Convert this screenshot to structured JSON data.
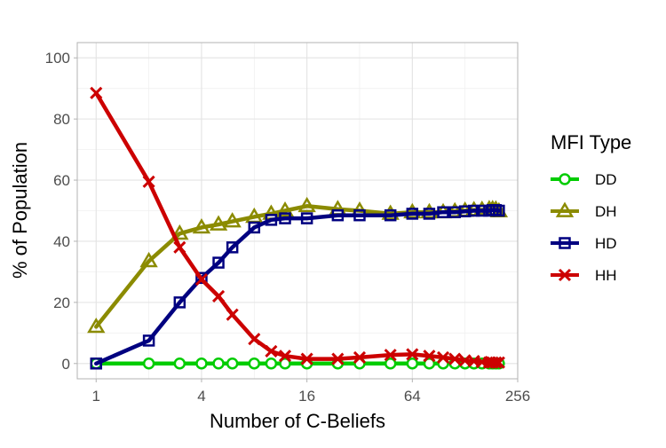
{
  "chart_data": {
    "type": "line",
    "title": "",
    "xlabel": "Number of C-Beliefs",
    "ylabel": "% of Population",
    "x_scale": "log2",
    "x_ticks": [
      1,
      4,
      16,
      64,
      256
    ],
    "x_tick_labels": [
      "1",
      "4",
      "16",
      "64",
      "256"
    ],
    "xlim": [
      0.78,
      256
    ],
    "y_ticks": [
      0,
      20,
      40,
      60,
      80,
      100
    ],
    "y_tick_labels": [
      "0",
      "20",
      "40",
      "60",
      "80",
      "100"
    ],
    "ylim": [
      -5,
      105
    ],
    "grid": true,
    "legend_title": "MFI Type",
    "legend_position": "right",
    "x": [
      1,
      2,
      3,
      4,
      5,
      6,
      8,
      10,
      12,
      16,
      24,
      32,
      48,
      64,
      80,
      96,
      112,
      128,
      144,
      160,
      176,
      184,
      192,
      200
    ],
    "series": [
      {
        "name": "DD",
        "color": "#00cc00",
        "marker": "circle",
        "values": [
          0,
          0,
          0,
          0,
          0,
          0,
          0,
          0,
          0,
          0,
          0,
          0,
          0,
          0,
          0,
          0,
          0,
          0,
          0,
          0,
          0,
          0,
          0,
          0
        ]
      },
      {
        "name": "DH",
        "color": "#8b8b00",
        "marker": "triangle",
        "values": [
          12,
          33.5,
          42.5,
          44.5,
          45.5,
          46.5,
          48,
          49,
          50,
          51.5,
          50.5,
          50,
          49,
          49.5,
          49.5,
          49.5,
          49.8,
          50,
          50.2,
          50.3,
          50.5,
          50.5,
          50.4,
          49.8
        ]
      },
      {
        "name": "HD",
        "color": "#000080",
        "marker": "square",
        "values": [
          0,
          7.5,
          20,
          28,
          33,
          38,
          44.5,
          47,
          47.5,
          47.5,
          48.5,
          48.5,
          48.5,
          49,
          49,
          49.5,
          49.5,
          49.8,
          50,
          50,
          50,
          50.2,
          50.2,
          50
        ]
      },
      {
        "name": "HH",
        "color": "#cc0000",
        "marker": "cross",
        "values": [
          88.5,
          59.5,
          38,
          27.5,
          22,
          16,
          8,
          4,
          2.5,
          1.5,
          1.5,
          2,
          2.8,
          3,
          2.5,
          2,
          1.5,
          1,
          0.8,
          0.5,
          0.3,
          0.3,
          0.3,
          0.3
        ]
      }
    ]
  }
}
